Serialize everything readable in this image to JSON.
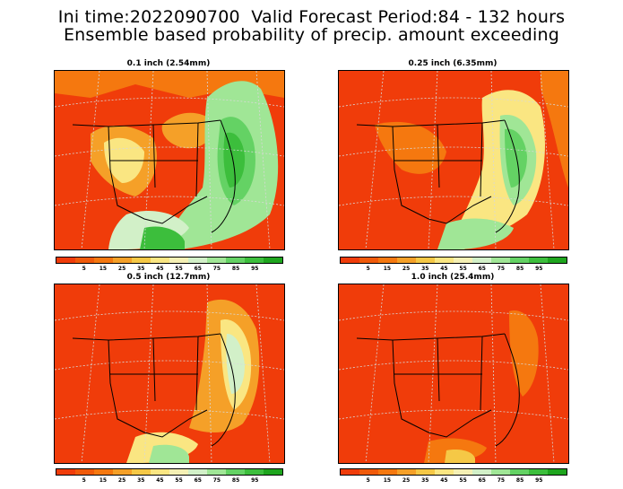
{
  "header": {
    "line1": "Ini time:2022090700  Valid Forecast Period:84 - 132 hours",
    "line2": "Ensemble based probability of precip. amount exceeding"
  },
  "panels": [
    {
      "title": "0.1 inch (2.54mm)"
    },
    {
      "title": "0.25 inch (6.35mm)"
    },
    {
      "title": "0.5 inch (12.7mm)"
    },
    {
      "title": "1.0 inch (25.4mm)"
    }
  ],
  "colorbar": {
    "colors": [
      "#f03c0a",
      "#f05a0a",
      "#f5780f",
      "#f5a028",
      "#f5c846",
      "#fae682",
      "#f5f0b4",
      "#d2f0c8",
      "#a0e696",
      "#64d264",
      "#3cbe3c",
      "#1ea51e"
    ],
    "labels": [
      "5",
      "15",
      "25",
      "35",
      "45",
      "55",
      "65",
      "75",
      "85",
      "95"
    ]
  }
}
